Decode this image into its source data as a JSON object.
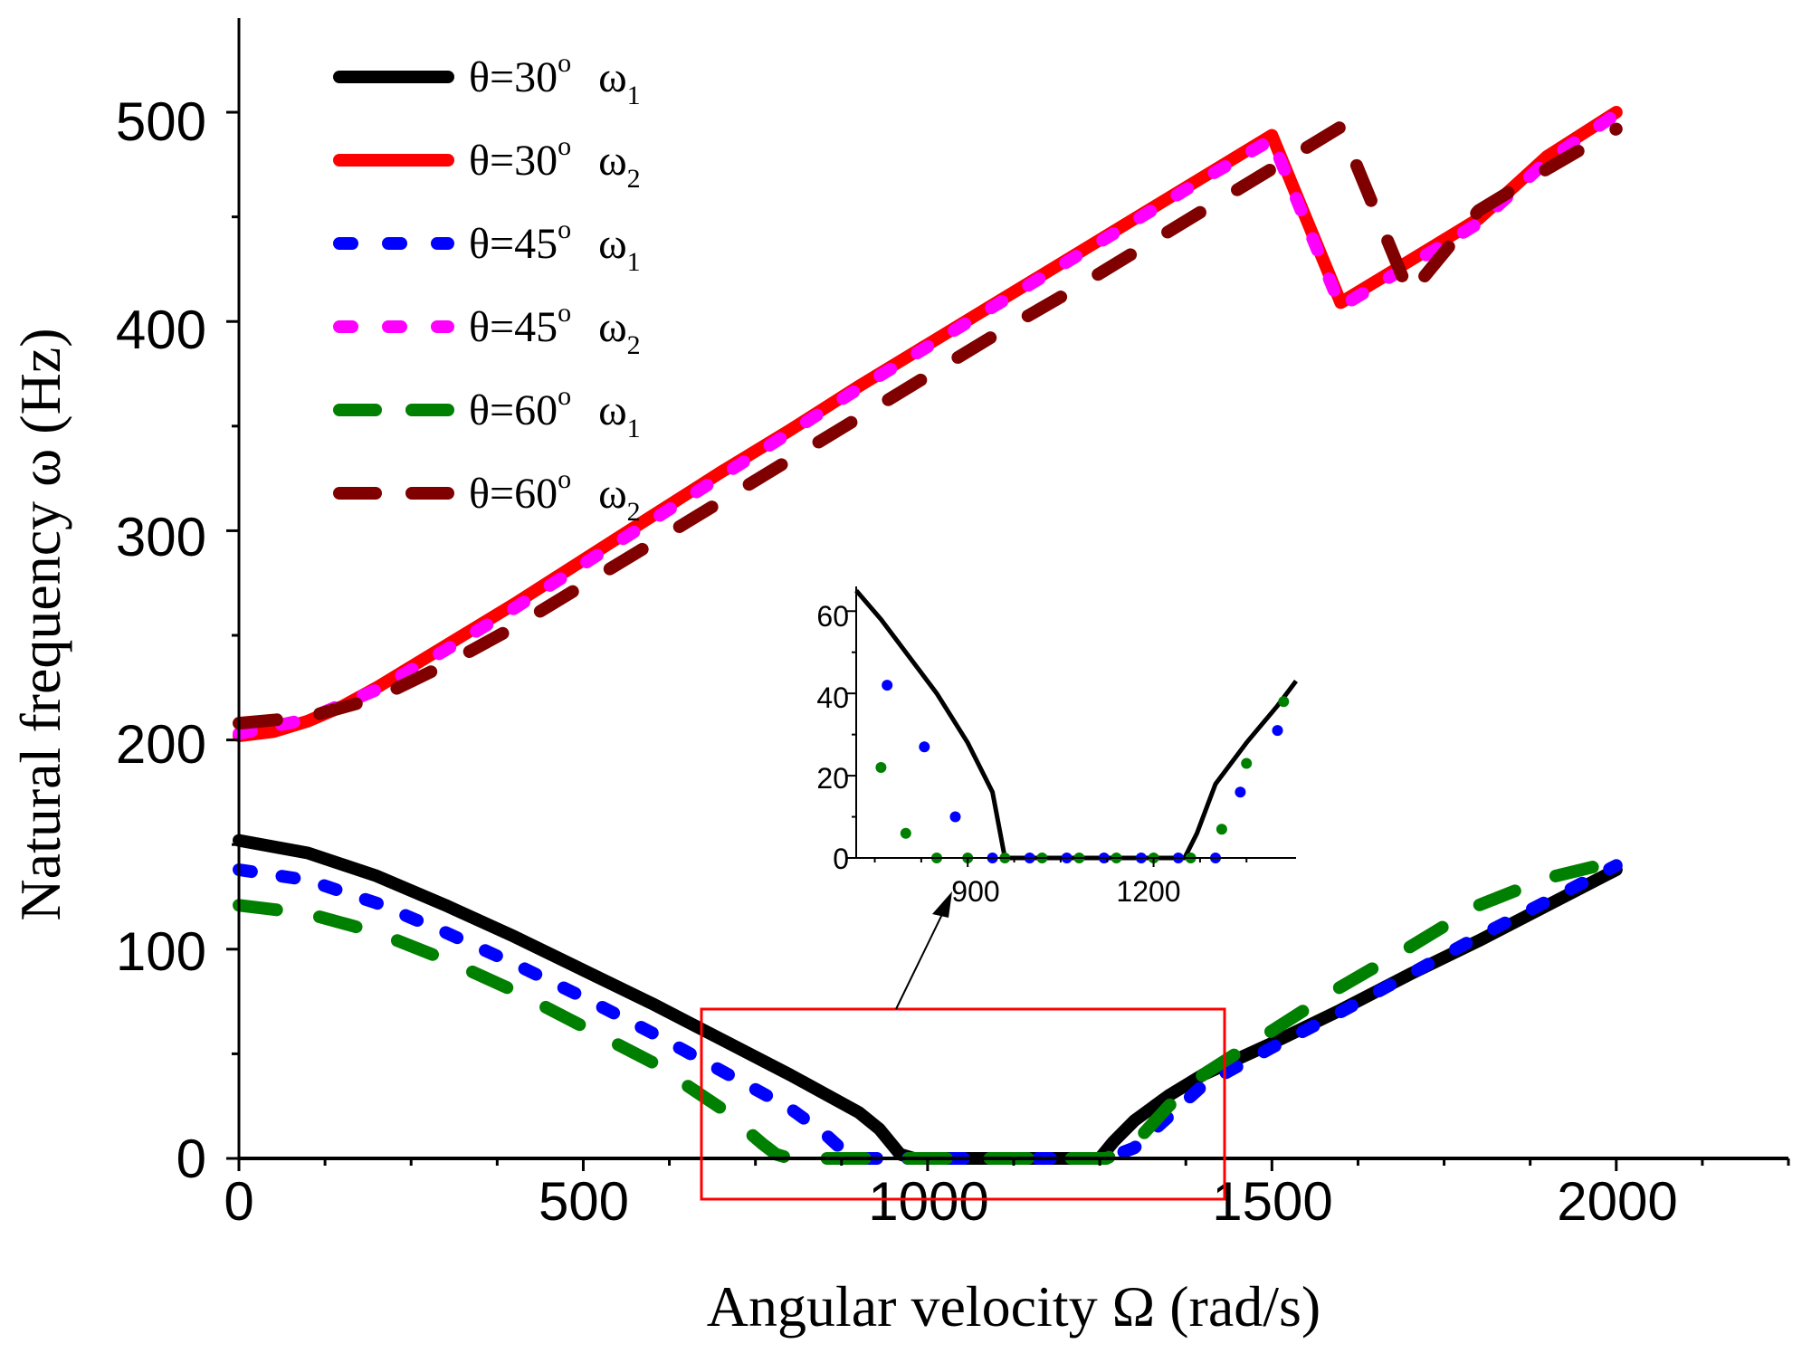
{
  "chart_data": {
    "type": "line",
    "xlabel": "Angular velocity Ω (rad/s)",
    "ylabel": "Natural frequency  ω (Hz)",
    "xlim": [
      0,
      2250
    ],
    "ylim": [
      0,
      545
    ],
    "x_ticks": [
      "0",
      "500",
      "1000",
      "1500",
      "2000"
    ],
    "y_ticks": [
      "0",
      "100",
      "200",
      "300",
      "400",
      "500"
    ],
    "legend_position": "top-left",
    "series": [
      {
        "name": "θ=30° ω1",
        "theta": "θ=30",
        "deg": "o",
        "omega": "ω",
        "sub": "1",
        "color": "#000000",
        "style": "solid",
        "x": [
          0,
          100,
          200,
          300,
          400,
          500,
          600,
          700,
          800,
          900,
          930,
          960,
          980,
          1000,
          1100,
          1200,
          1250,
          1270,
          1300,
          1350,
          1400,
          1500,
          1600,
          1700,
          1800,
          1900,
          2000
        ],
        "y": [
          152,
          146,
          135,
          121,
          106,
          90,
          74,
          57,
          40,
          22,
          14,
          2,
          0,
          0,
          0,
          0,
          0,
          8,
          18,
          30,
          40,
          55,
          71,
          88,
          104,
          121,
          138
        ]
      },
      {
        "name": "θ=30° ω2",
        "theta": "θ=30",
        "deg": "o",
        "omega": "ω",
        "sub": "2",
        "color": "#ff0000",
        "style": "solid",
        "x": [
          0,
          50,
          100,
          150,
          200,
          300,
          400,
          500,
          600,
          700,
          800,
          900,
          1000,
          1100,
          1200,
          1300,
          1400,
          1500,
          1600,
          1700,
          1800,
          1900,
          2000
        ],
        "y": [
          202,
          204,
          209,
          216,
          225,
          245,
          265,
          286,
          307,
          328,
          348,
          369,
          389,
          409,
          429,
          449,
          469,
          489,
          409,
          429,
          449,
          479,
          500
        ]
      },
      {
        "name": "θ=45° ω1",
        "theta": "θ=45",
        "deg": "o",
        "omega": "ω",
        "sub": "1",
        "color": "#0000ff",
        "style": "dotted",
        "x": [
          0,
          100,
          200,
          300,
          400,
          500,
          600,
          700,
          800,
          850,
          880,
          900,
          1000,
          1100,
          1200,
          1260,
          1300,
          1350,
          1400,
          1500,
          1600,
          1700,
          1800,
          1900,
          2000
        ],
        "y": [
          138,
          133,
          122,
          108,
          93,
          77,
          60,
          42,
          24,
          12,
          3,
          0,
          0,
          0,
          0,
          0,
          5,
          20,
          35,
          53,
          70,
          88,
          106,
          123,
          140
        ]
      },
      {
        "name": "θ=45° ω2",
        "theta": "θ=45",
        "deg": "o",
        "omega": "ω",
        "sub": "2",
        "color": "#ff00ff",
        "style": "dotted",
        "x": [
          0,
          100,
          200,
          300,
          400,
          500,
          600,
          700,
          800,
          900,
          1000,
          1100,
          1200,
          1300,
          1400,
          1500,
          1600,
          1700,
          1800,
          1900,
          2000
        ],
        "y": [
          203,
          210,
          224,
          243,
          263,
          284,
          305,
          326,
          347,
          368,
          388,
          408,
          428,
          448,
          468,
          487,
          407,
          427,
          447,
          477,
          499
        ]
      },
      {
        "name": "θ=60° ω1",
        "theta": "θ=60",
        "deg": "o",
        "omega": "ω",
        "sub": "1",
        "color": "#008000",
        "style": "dashed",
        "x": [
          0,
          100,
          200,
          300,
          400,
          500,
          600,
          700,
          760,
          780,
          800,
          900,
          1000,
          1100,
          1200,
          1260,
          1300,
          1350,
          1400,
          1500,
          1600,
          1700,
          1800,
          1900,
          2000
        ],
        "y": [
          121,
          117,
          108,
          95,
          80,
          63,
          46,
          24,
          7,
          2,
          0,
          0,
          0,
          0,
          0,
          0,
          7,
          25,
          40,
          61,
          82,
          101,
          121,
          134,
          142
        ]
      },
      {
        "name": "θ=60° ω2",
        "theta": "θ=60",
        "deg": "o",
        "omega": "ω",
        "sub": "2",
        "color": "#800000",
        "style": "dashed",
        "x": [
          0,
          100,
          200,
          300,
          400,
          500,
          600,
          700,
          800,
          900,
          1000,
          1100,
          1200,
          1300,
          1400,
          1500,
          1600,
          1700,
          1800,
          1900,
          2000
        ],
        "y": [
          208,
          211,
          220,
          236,
          254,
          274,
          294,
          314,
          334,
          354,
          374,
          394,
          413,
          433,
          453,
          473,
          493,
          413,
          453,
          473,
          492
        ]
      }
    ],
    "zoom_box": {
      "x_range": [
        670,
        1430
      ],
      "y_range": [
        -20,
        72
      ],
      "color": "#ff0000"
    },
    "inset": {
      "xlim": [
        720,
        1430
      ],
      "ylim": [
        0,
        66
      ],
      "x_ticks": [
        "900",
        "1200"
      ],
      "y_ticks": [
        "0",
        "20",
        "40",
        "60"
      ],
      "series": [
        {
          "ref": "θ=30° ω1",
          "color": "#000000",
          "style": "solid",
          "x": [
            720,
            760,
            800,
            850,
            900,
            920,
            940,
            960,
            1000,
            1100,
            1200,
            1250,
            1270,
            1300,
            1350,
            1400,
            1430
          ],
          "y": [
            65,
            58,
            50,
            40,
            28,
            22,
            16,
            0,
            0,
            0,
            0,
            0,
            6,
            18,
            28,
            37,
            43
          ]
        },
        {
          "ref": "θ=45° ω1",
          "color": "#0000ff",
          "style": "dots",
          "x": [
            770,
            830,
            880,
            940,
            1000,
            1060,
            1120,
            1180,
            1240,
            1300,
            1340,
            1400
          ],
          "y": [
            42,
            27,
            10,
            0,
            0,
            0,
            0,
            0,
            0,
            0,
            16,
            31
          ]
        },
        {
          "ref": "θ=60° ω1",
          "color": "#008000",
          "style": "dots",
          "x": [
            760,
            800,
            850,
            900,
            960,
            1020,
            1080,
            1140,
            1200,
            1260,
            1310,
            1350,
            1410
          ],
          "y": [
            22,
            6,
            0,
            0,
            0,
            0,
            0,
            0,
            0,
            0,
            7,
            23,
            38
          ]
        }
      ]
    }
  }
}
